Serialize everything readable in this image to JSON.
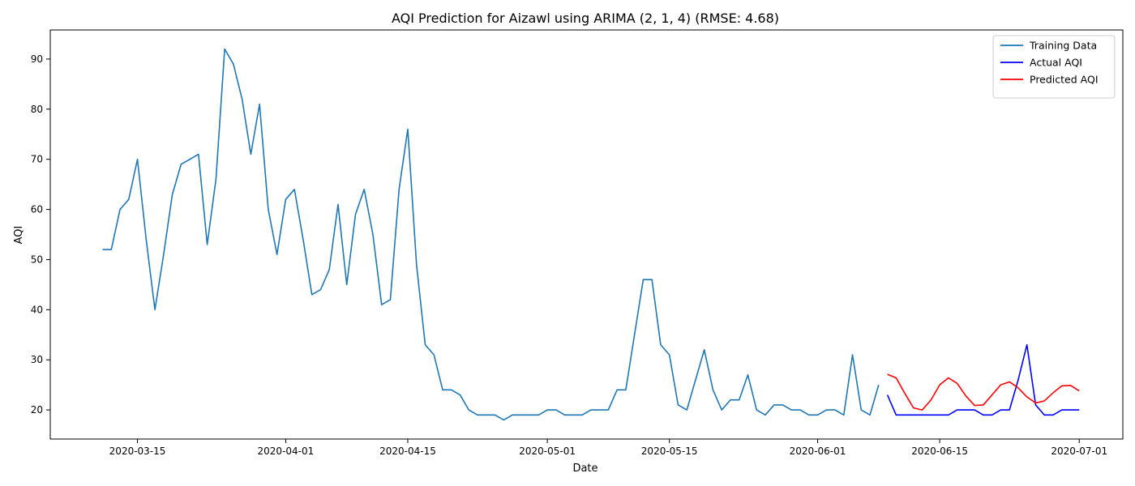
{
  "chart_data": {
    "type": "line",
    "title": "AQI Prediction for Aizawl using ARIMA (2, 1, 4) (RMSE: 4.68)",
    "xlabel": "Date",
    "ylabel": "AQI",
    "xlim": [
      "2020-03-05",
      "2020-07-06"
    ],
    "ylim": [
      14.2,
      95.8
    ],
    "x_ticks": [
      "2020-03-15",
      "2020-04-01",
      "2020-04-15",
      "2020-05-01",
      "2020-05-15",
      "2020-06-01",
      "2020-06-15",
      "2020-07-01"
    ],
    "y_ticks": [
      20,
      30,
      40,
      50,
      60,
      70,
      80,
      90
    ],
    "grid": false,
    "legend_position": "top-right",
    "series": [
      {
        "name": "Training Data",
        "color": "#1f77b4",
        "start_date": "2020-03-11",
        "step_days": 1,
        "values": [
          52,
          52,
          60,
          62,
          70,
          54,
          40,
          51,
          63,
          69,
          70,
          71,
          53,
          66,
          92,
          89,
          82,
          71,
          81,
          60,
          51,
          62,
          64,
          54,
          43,
          44,
          48,
          61,
          45,
          59,
          64,
          55,
          41,
          42,
          64,
          76,
          49,
          33,
          31,
          24,
          24,
          23,
          20,
          19,
          19,
          19,
          18,
          19,
          19,
          19,
          19,
          20,
          20,
          19,
          19,
          19,
          20,
          20,
          20,
          24,
          24,
          35,
          46,
          46,
          33,
          31,
          21,
          20,
          26,
          32,
          24,
          20,
          22,
          22,
          27,
          20,
          19,
          21,
          21,
          20,
          20,
          19,
          19,
          20,
          20,
          19,
          31,
          20,
          19,
          25
        ]
      },
      {
        "name": "Actual AQI",
        "color": "#0000ff",
        "start_date": "2020-06-09",
        "step_days": 1,
        "values": [
          23,
          19,
          19,
          19,
          19,
          19,
          19,
          19,
          20,
          20,
          20,
          19,
          19,
          20,
          20,
          26,
          33,
          21,
          19,
          19,
          20,
          20,
          20
        ]
      },
      {
        "name": "Predicted AQI",
        "color": "#ff0000",
        "start_date": "2020-06-09",
        "step_days": 1,
        "values": [
          27.1,
          26.4,
          23.3,
          20.4,
          20.0,
          22.0,
          25.0,
          26.4,
          25.3,
          22.8,
          20.9,
          21.0,
          23.0,
          25.0,
          25.6,
          24.4,
          22.6,
          21.4,
          21.8,
          23.4,
          24.8,
          24.9,
          23.8
        ]
      }
    ]
  }
}
